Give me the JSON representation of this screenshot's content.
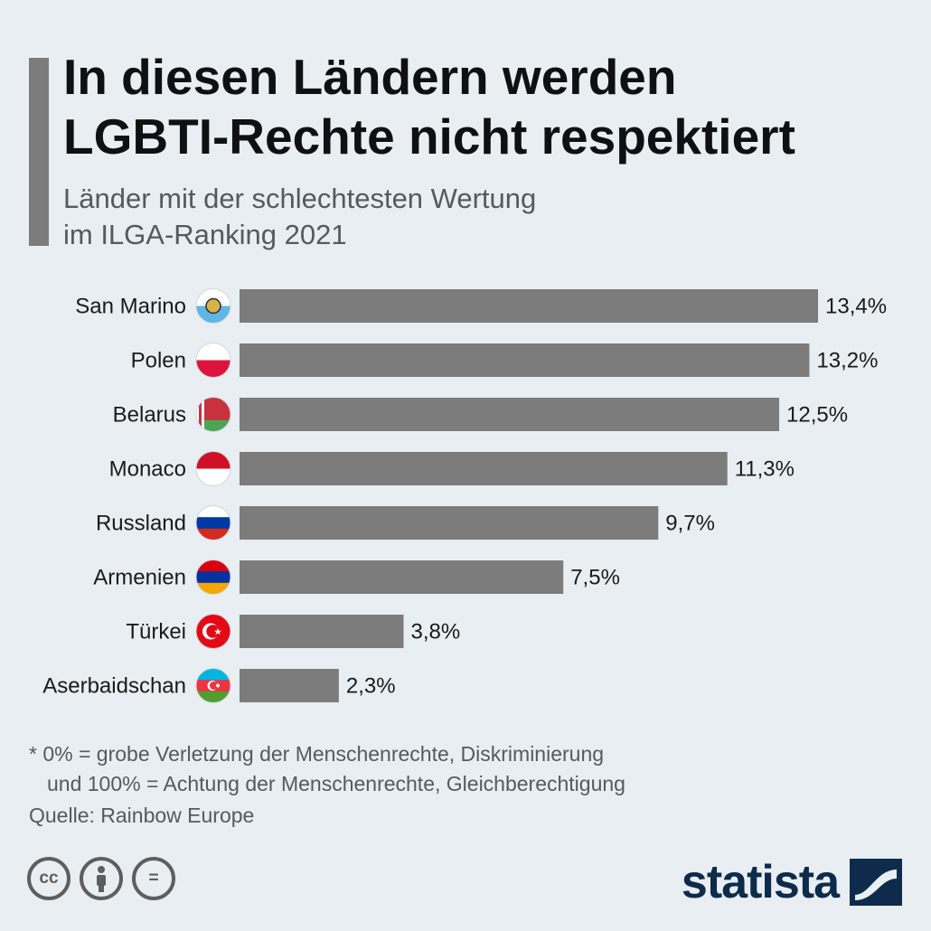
{
  "header": {
    "title_line1": "In diesen Ländern werden",
    "title_line2": "LGBTI-Rechte nicht respektiert",
    "subtitle_line1": "Länder mit der schlechtesten Wertung",
    "subtitle_line2": "im ILGA-Ranking 2021"
  },
  "chart_data": {
    "type": "bar",
    "orientation": "horizontal",
    "categories": [
      "San Marino",
      "Polen",
      "Belarus",
      "Monaco",
      "Russland",
      "Armenien",
      "Türkei",
      "Aserbaidschan"
    ],
    "values": [
      13.4,
      13.2,
      12.5,
      11.3,
      9.7,
      7.5,
      3.8,
      2.3
    ],
    "value_labels": [
      "13,4%",
      "13,2%",
      "12,5%",
      "11,3%",
      "9,7%",
      "7,5%",
      "3,8%",
      "2,3%"
    ],
    "flag_icons": [
      "san-marino-flag-icon",
      "poland-flag-icon",
      "belarus-flag-icon",
      "monaco-flag-icon",
      "russia-flag-icon",
      "armenia-flag-icon",
      "turkey-flag-icon",
      "azerbaijan-flag-icon"
    ],
    "bar_color": "#7c7c7c",
    "xlim": [
      0,
      13.4
    ],
    "grid": false,
    "legend": "none"
  },
  "notes": {
    "line1": "* 0% = grobe Verletzung der Menschenrechte, Diskriminierung",
    "line2": "und 100% = Achtung der Menschenrechte, Gleichberechtigung",
    "source": "Quelle: Rainbow Europe"
  },
  "footer": {
    "license_icons": [
      "cc-icon",
      "attribution-icon",
      "no-derivatives-icon"
    ],
    "cc_text": "cc",
    "nd_text": "=",
    "brand": "statista"
  },
  "colors": {
    "background": "#e8eef2",
    "bar": "#7c7c7c",
    "accent": "#7c7c7c",
    "brand": "#0e2b4c"
  }
}
